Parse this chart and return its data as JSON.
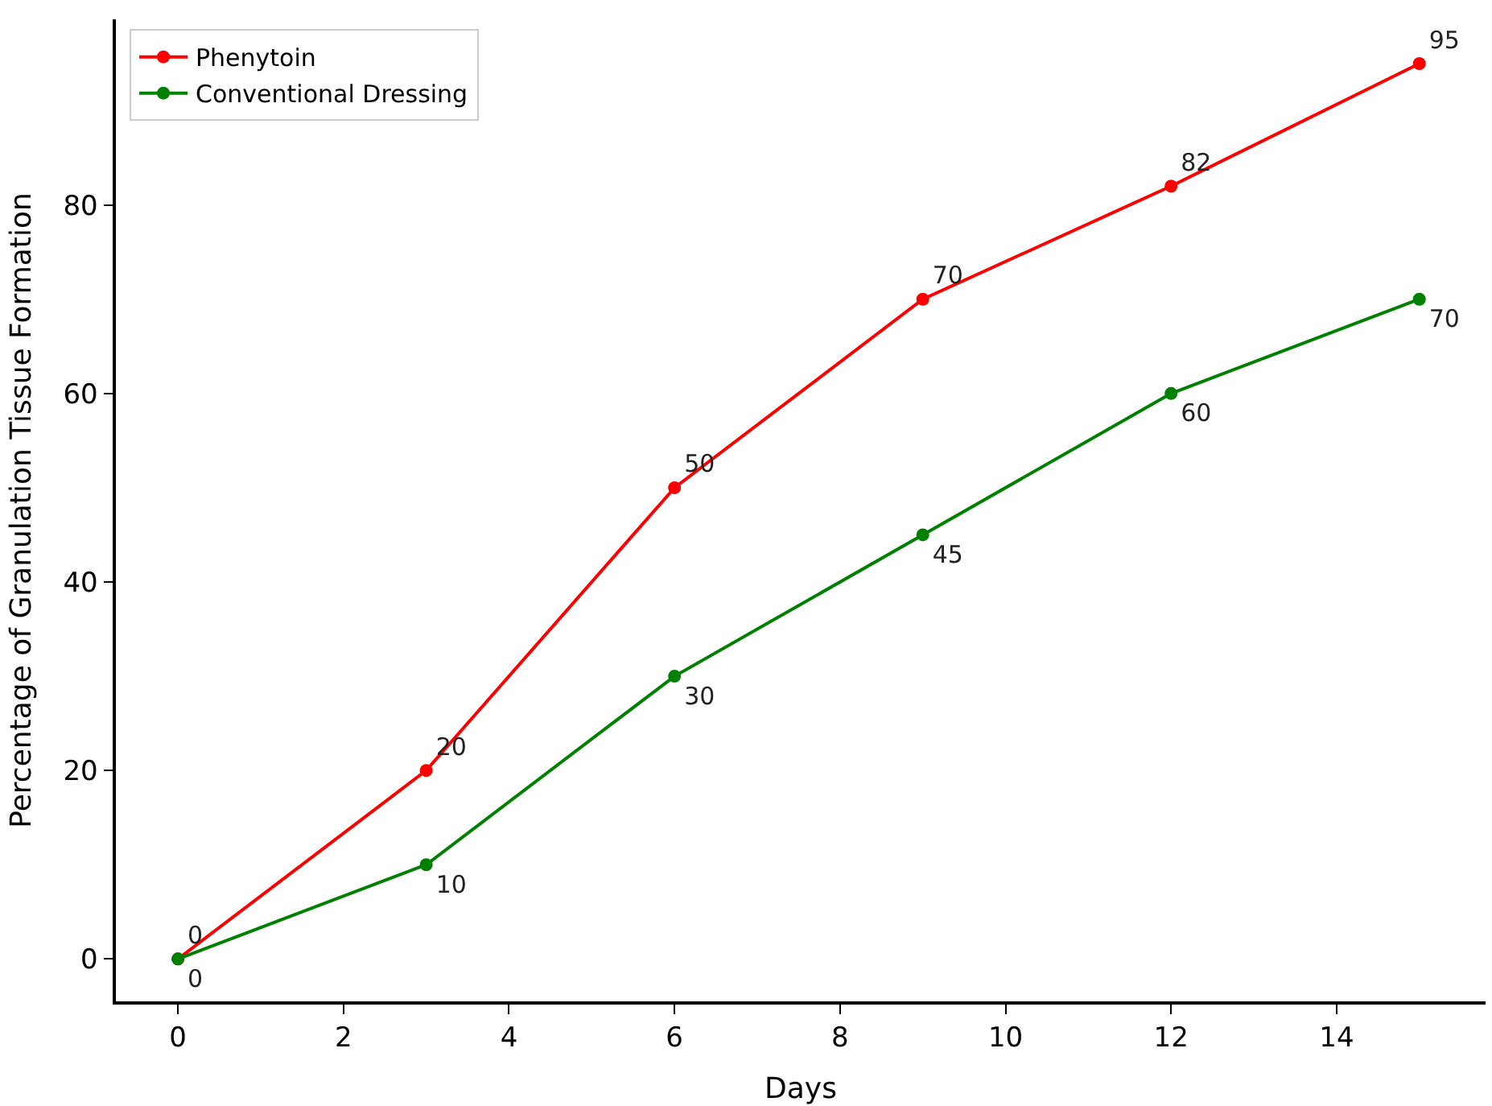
{
  "chart_data": {
    "type": "line",
    "xlabel": "Days",
    "ylabel": "Percentage of Granulation Tissue Formation",
    "x": [
      0,
      3,
      6,
      9,
      12,
      15
    ],
    "series": [
      {
        "name": "Phenytoin",
        "color": "#ff0000",
        "values": [
          0,
          20,
          50,
          70,
          82,
          95
        ]
      },
      {
        "name": "Conventional Dressing",
        "color": "#008000",
        "values": [
          0,
          10,
          30,
          45,
          60,
          70
        ]
      }
    ],
    "xlim": [
      -0.75,
      15.8
    ],
    "ylim": [
      -4.5,
      99.7
    ],
    "xticks": [
      0,
      2,
      4,
      6,
      8,
      10,
      12,
      14
    ],
    "yticks": [
      0,
      20,
      40,
      60,
      80
    ],
    "legend": "top left",
    "marker": "circle",
    "line_style": "solid",
    "data_labels": true
  }
}
